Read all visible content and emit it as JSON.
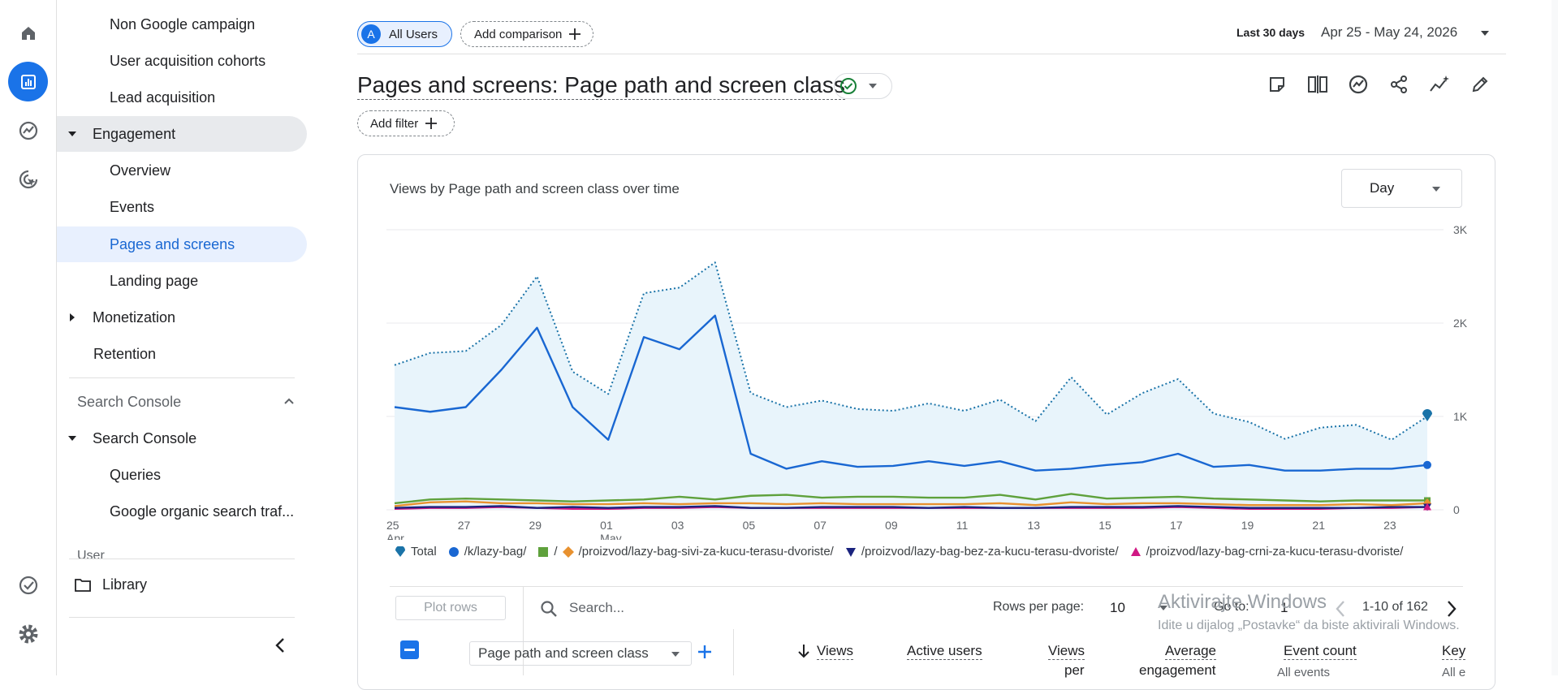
{
  "nav": {
    "items": [
      {
        "label": "Non Google campaign"
      },
      {
        "label": "User acquisition cohorts"
      },
      {
        "label": "Lead acquisition"
      },
      {
        "label": "Engagement"
      },
      {
        "label": "Overview"
      },
      {
        "label": "Events"
      },
      {
        "label": "Pages and screens"
      },
      {
        "label": "Landing page"
      },
      {
        "label": "Monetization"
      },
      {
        "label": "Retention"
      }
    ],
    "search_console_header": "Search Console",
    "search_console_items": [
      {
        "label": "Search Console"
      },
      {
        "label": "Queries"
      },
      {
        "label": "Google organic search traf..."
      }
    ],
    "cutoff_section": "User",
    "library": "Library"
  },
  "header": {
    "segment_avatar": "A",
    "segment_label": "All Users",
    "add_comparison": "Add comparison",
    "date_prefix": "Last 30 days",
    "date_range": "Apr 25 - May 24, 2026"
  },
  "report": {
    "title": "Pages and screens: Page path and screen class",
    "add_filter": "Add filter"
  },
  "card": {
    "title": "Views by Page path and screen class over time",
    "granularity": "Day"
  },
  "chart_data": {
    "type": "line",
    "x": [
      "Apr 25",
      "Apr 26",
      "Apr 27",
      "Apr 28",
      "Apr 29",
      "Apr 30",
      "May 01",
      "May 02",
      "May 03",
      "May 04",
      "May 05",
      "May 06",
      "May 07",
      "May 08",
      "May 09",
      "May 10",
      "May 11",
      "May 12",
      "May 13",
      "May 14",
      "May 15",
      "May 16",
      "May 17",
      "May 18",
      "May 19",
      "May 20",
      "May 21",
      "May 22",
      "May 23",
      "May 24"
    ],
    "x_tick_labels": [
      {
        "label": "25",
        "sub": "Apr",
        "index": 0
      },
      {
        "label": "27",
        "sub": "",
        "index": 2
      },
      {
        "label": "29",
        "sub": "",
        "index": 4
      },
      {
        "label": "01",
        "sub": "May",
        "index": 6
      },
      {
        "label": "03",
        "sub": "",
        "index": 8
      },
      {
        "label": "05",
        "sub": "",
        "index": 10
      },
      {
        "label": "07",
        "sub": "",
        "index": 12
      },
      {
        "label": "09",
        "sub": "",
        "index": 14
      },
      {
        "label": "11",
        "sub": "",
        "index": 16
      },
      {
        "label": "13",
        "sub": "",
        "index": 18
      },
      {
        "label": "15",
        "sub": "",
        "index": 20
      },
      {
        "label": "17",
        "sub": "",
        "index": 22
      },
      {
        "label": "19",
        "sub": "",
        "index": 24
      },
      {
        "label": "21",
        "sub": "",
        "index": 26
      },
      {
        "label": "23",
        "sub": "",
        "index": 28
      }
    ],
    "y_ticks": [
      {
        "value": 0,
        "label": "0"
      },
      {
        "value": 1000,
        "label": "1K"
      },
      {
        "value": 2000,
        "label": "2K"
      },
      {
        "value": 3000,
        "label": "3K"
      }
    ],
    "ylim": [
      0,
      3000
    ],
    "grid": true,
    "legend_position": "bottom",
    "series": [
      {
        "name": "Total",
        "color": "#1a73a8",
        "style": "dotted-area",
        "marker": "drop",
        "values": [
          1550,
          1680,
          1700,
          1980,
          2500,
          1480,
          1240,
          2320,
          2380,
          2650,
          1250,
          1100,
          1170,
          1080,
          1060,
          1140,
          1060,
          1180,
          950,
          1420,
          1020,
          1250,
          1400,
          1030,
          940,
          760,
          880,
          910,
          750,
          1000
        ]
      },
      {
        "name": "/k/lazy-bag/",
        "color": "#1967d2",
        "style": "solid",
        "marker": "circle",
        "values": [
          1100,
          1050,
          1100,
          1500,
          1950,
          1100,
          750,
          1850,
          1720,
          2080,
          600,
          440,
          520,
          460,
          470,
          520,
          470,
          520,
          420,
          440,
          480,
          510,
          600,
          460,
          480,
          420,
          420,
          440,
          440,
          480
        ]
      },
      {
        "name": "/",
        "color": "#5fa13c",
        "style": "solid",
        "marker": "square",
        "values": [
          70,
          110,
          120,
          110,
          100,
          90,
          100,
          110,
          140,
          110,
          150,
          160,
          130,
          140,
          140,
          130,
          130,
          160,
          110,
          170,
          120,
          130,
          140,
          120,
          110,
          100,
          90,
          100,
          100,
          100
        ]
      },
      {
        "name": "/proizvod/lazy-bag-sivi-za-kucu-terasu-dvoriste/",
        "color": "#e8912f",
        "style": "solid",
        "marker": "diamond",
        "values": [
          40,
          80,
          90,
          70,
          70,
          60,
          60,
          70,
          60,
          70,
          70,
          60,
          70,
          60,
          60,
          60,
          60,
          70,
          50,
          80,
          60,
          70,
          70,
          60,
          50,
          50,
          50,
          60,
          50,
          70
        ]
      },
      {
        "name": "/proizvod/lazy-bag-bez-za-kucu-terasu-dvoriste/",
        "color": "#1a237e",
        "style": "solid",
        "marker": "triangle-down",
        "values": [
          20,
          30,
          30,
          40,
          20,
          30,
          20,
          30,
          30,
          40,
          20,
          20,
          30,
          30,
          30,
          20,
          30,
          20,
          20,
          30,
          30,
          30,
          40,
          30,
          20,
          20,
          20,
          20,
          30,
          30
        ]
      },
      {
        "name": "/proizvod/lazy-bag-crni-za-kucu-terasu-dvoriste/",
        "color": "#d01884",
        "style": "solid",
        "marker": "triangle-up",
        "values": [
          10,
          20,
          20,
          30,
          20,
          10,
          10,
          20,
          20,
          30,
          20,
          20,
          20,
          20,
          20,
          20,
          20,
          20,
          20,
          20,
          20,
          20,
          30,
          20,
          10,
          10,
          10,
          20,
          20,
          30
        ]
      }
    ]
  },
  "table": {
    "plot_rows": "Plot rows",
    "search_placeholder": "Search...",
    "rows_per_page_label": "Rows per page:",
    "rows_per_page": "10",
    "go_to_label": "Go to:",
    "go_to_value": "1",
    "pagination": "1-10 of 162",
    "dimension": "Page path and screen class",
    "columns": [
      {
        "label": "Views",
        "sub": ""
      },
      {
        "label": "Active users",
        "sub": ""
      },
      {
        "label": "Views",
        "sub": "per"
      },
      {
        "label": "Average",
        "sub": "engagement"
      },
      {
        "label": "Event count",
        "sub": "All events"
      },
      {
        "label": "Key",
        "sub": "All e"
      }
    ]
  },
  "watermark": {
    "line1": "Aktivirajte Windows",
    "line2": "Idite u dijalog „Postavke“ da biste aktivirali Windows."
  }
}
